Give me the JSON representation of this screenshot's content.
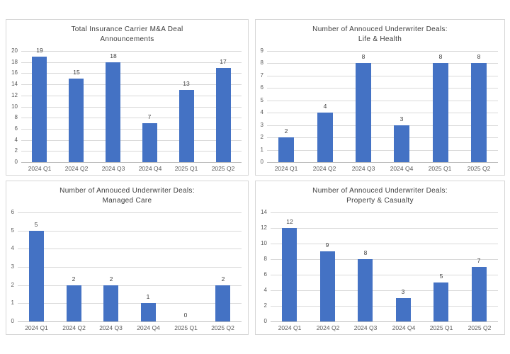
{
  "page": {
    "background": "#ffffff",
    "bar_color": "#4472c4",
    "gridline_color": "#d9d9d9",
    "axis_line_color": "#bfbfbf",
    "panel_border_color": "#d6d6d6",
    "title_color": "#3d3d3d",
    "axis_label_color": "#595959",
    "data_label_color": "#404040"
  },
  "chart_data": [
    {
      "id": "total-insurance-ma",
      "type": "bar",
      "title": "Total Insurance Carrier M&A Deal\nAnnouncements",
      "categories": [
        "2024 Q1",
        "2024 Q2",
        "2024 Q3",
        "2024 Q4",
        "2025 Q1",
        "2025 Q2"
      ],
      "values": [
        19,
        15,
        18,
        7,
        13,
        17
      ],
      "ylim": [
        0,
        20
      ],
      "ytick_step": 2,
      "yticks": [
        0,
        2,
        4,
        6,
        8,
        10,
        12,
        14,
        16,
        18,
        20
      ],
      "xlabel": "",
      "ylabel": "",
      "grid": true,
      "legend_position": "none",
      "data_labels": true
    },
    {
      "id": "life-health",
      "type": "bar",
      "title": "Number of Annouced Underwriter Deals:\nLife & Health",
      "categories": [
        "2024 Q1",
        "2024 Q2",
        "2024 Q3",
        "2024 Q4",
        "2025 Q1",
        "2025 Q2"
      ],
      "values": [
        2,
        4,
        8,
        3,
        8,
        8
      ],
      "ylim": [
        0,
        9
      ],
      "ytick_step": 1,
      "yticks": [
        0,
        1,
        2,
        3,
        4,
        5,
        6,
        7,
        8,
        9
      ],
      "xlabel": "",
      "ylabel": "",
      "grid": true,
      "legend_position": "none",
      "data_labels": true
    },
    {
      "id": "managed-care",
      "type": "bar",
      "title": "Number of Annouced Underwriter Deals:\nManaged Care",
      "categories": [
        "2024 Q1",
        "2024 Q2",
        "2024 Q3",
        "2024 Q4",
        "2025 Q1",
        "2025 Q2"
      ],
      "values": [
        5,
        2,
        2,
        1,
        0,
        2
      ],
      "ylim": [
        0,
        6
      ],
      "ytick_step": 1,
      "yticks": [
        0,
        1,
        2,
        3,
        4,
        5,
        6
      ],
      "xlabel": "",
      "ylabel": "",
      "grid": true,
      "legend_position": "none",
      "data_labels": true
    },
    {
      "id": "property-casualty",
      "type": "bar",
      "title": "Number of Annouced Underwriter Deals:\nProperty & Casualty",
      "categories": [
        "2024 Q1",
        "2024 Q2",
        "2024 Q3",
        "2024 Q4",
        "2025 Q1",
        "2025 Q2"
      ],
      "values": [
        12,
        9,
        8,
        3,
        5,
        7
      ],
      "ylim": [
        0,
        14
      ],
      "ytick_step": 2,
      "yticks": [
        0,
        2,
        4,
        6,
        8,
        10,
        12,
        14
      ],
      "xlabel": "",
      "ylabel": "",
      "grid": true,
      "legend_position": "none",
      "data_labels": true
    }
  ]
}
